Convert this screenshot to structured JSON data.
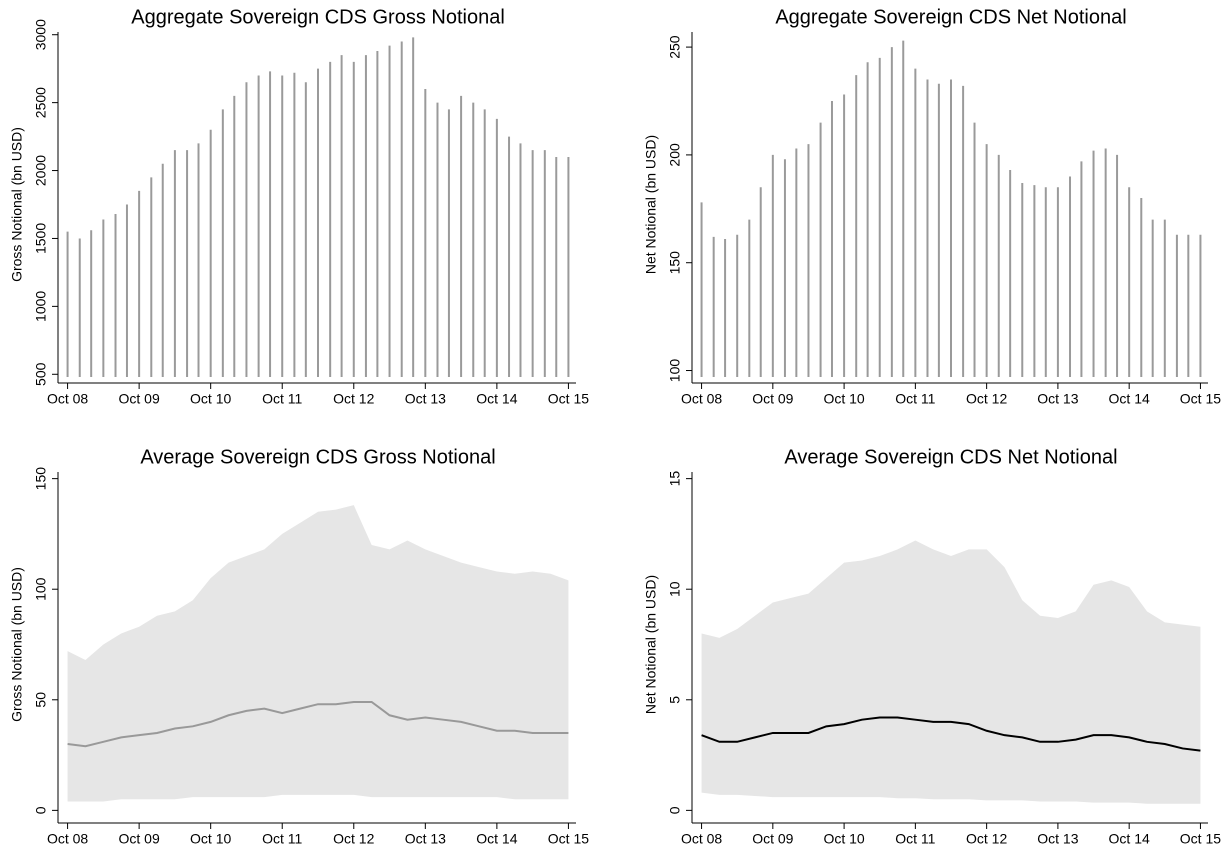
{
  "chart_data": [
    {
      "type": "spike",
      "title": "Aggregate Sovereign CDS Gross Notional",
      "ylabel": "Gross Notional (bn USD)",
      "color": "#9a9a9a",
      "x": [
        2008.75,
        2008.92,
        2009.08,
        2009.25,
        2009.42,
        2009.58,
        2009.75,
        2009.92,
        2010.08,
        2010.25,
        2010.42,
        2010.58,
        2010.75,
        2010.92,
        2011.08,
        2011.25,
        2011.42,
        2011.58,
        2011.75,
        2011.92,
        2012.08,
        2012.25,
        2012.42,
        2012.58,
        2012.75,
        2012.92,
        2013.08,
        2013.25,
        2013.42,
        2013.58,
        2013.75,
        2013.92,
        2014.08,
        2014.25,
        2014.42,
        2014.58,
        2014.75,
        2014.92,
        2015.08,
        2015.25,
        2015.42,
        2015.58,
        2015.75
      ],
      "values": [
        1550,
        1500,
        1560,
        1640,
        1680,
        1750,
        1850,
        1950,
        2050,
        2150,
        2150,
        2200,
        2300,
        2450,
        2550,
        2650,
        2700,
        2730,
        2700,
        2720,
        2650,
        2750,
        2800,
        2850,
        2800,
        2850,
        2880,
        2920,
        2950,
        2980,
        2600,
        2500,
        2450,
        2550,
        2500,
        2450,
        2380,
        2250,
        2200,
        2150,
        2150,
        2100,
        2100
      ],
      "xlim": [
        2008.7,
        2015.8
      ],
      "ylim": [
        480,
        3020
      ],
      "yticks": [
        500,
        1000,
        1500,
        2000,
        2500,
        3000
      ],
      "xticks": [
        {
          "value": 2008.75,
          "label": "Oct 08"
        },
        {
          "value": 2009.75,
          "label": "Oct 09"
        },
        {
          "value": 2010.75,
          "label": "Oct 10"
        },
        {
          "value": 2011.75,
          "label": "Oct 11"
        },
        {
          "value": 2012.75,
          "label": "Oct 12"
        },
        {
          "value": 2013.75,
          "label": "Oct 13"
        },
        {
          "value": 2014.75,
          "label": "Oct 14"
        },
        {
          "value": 2015.75,
          "label": "Oct 15"
        }
      ]
    },
    {
      "type": "spike",
      "title": "Aggregate Sovereign CDS Net Notional",
      "ylabel": "Net Notional (bn USD)",
      "color": "#9a9a9a",
      "x": [
        2008.75,
        2008.92,
        2009.08,
        2009.25,
        2009.42,
        2009.58,
        2009.75,
        2009.92,
        2010.08,
        2010.25,
        2010.42,
        2010.58,
        2010.75,
        2010.92,
        2011.08,
        2011.25,
        2011.42,
        2011.58,
        2011.75,
        2011.92,
        2012.08,
        2012.25,
        2012.42,
        2012.58,
        2012.75,
        2012.92,
        2013.08,
        2013.25,
        2013.42,
        2013.58,
        2013.75,
        2013.92,
        2014.08,
        2014.25,
        2014.42,
        2014.58,
        2014.75,
        2014.92,
        2015.08,
        2015.25,
        2015.42,
        2015.58,
        2015.75
      ],
      "values": [
        178,
        162,
        161,
        163,
        170,
        185,
        200,
        198,
        203,
        205,
        215,
        225,
        228,
        237,
        243,
        245,
        250,
        253,
        240,
        235,
        233,
        235,
        232,
        215,
        205,
        200,
        193,
        187,
        186,
        185,
        185,
        190,
        197,
        202,
        203,
        200,
        185,
        180,
        170,
        170,
        163,
        163,
        163
      ],
      "xlim": [
        2008.7,
        2015.8
      ],
      "ylim": [
        97,
        257
      ],
      "yticks": [
        100,
        150,
        200,
        250
      ],
      "xticks": [
        {
          "value": 2008.75,
          "label": "Oct 08"
        },
        {
          "value": 2009.75,
          "label": "Oct 09"
        },
        {
          "value": 2010.75,
          "label": "Oct 10"
        },
        {
          "value": 2011.75,
          "label": "Oct 11"
        },
        {
          "value": 2012.75,
          "label": "Oct 12"
        },
        {
          "value": 2013.75,
          "label": "Oct 13"
        },
        {
          "value": 2014.75,
          "label": "Oct 14"
        },
        {
          "value": 2015.75,
          "label": "Oct 15"
        }
      ]
    },
    {
      "type": "range-line",
      "title": "Average Sovereign CDS Gross Notional",
      "ylabel": "Gross Notional (bn USD)",
      "color": "#999999",
      "band": {
        "color": "#e6e6e6",
        "upper": [
          72,
          68,
          75,
          80,
          83,
          88,
          90,
          95,
          105,
          112,
          115,
          118,
          125,
          130,
          135,
          136,
          138,
          120,
          118,
          122,
          118,
          115,
          112,
          110,
          108,
          107,
          108,
          107,
          104
        ],
        "lower": [
          4,
          4,
          4,
          5,
          5,
          5,
          5,
          6,
          6,
          6,
          6,
          6,
          7,
          7,
          7,
          7,
          7,
          6,
          6,
          6,
          6,
          6,
          6,
          6,
          6,
          5,
          5,
          5,
          5
        ]
      },
      "x": [
        2008.75,
        2009,
        2009.25,
        2009.5,
        2009.75,
        2010,
        2010.25,
        2010.5,
        2010.75,
        2011,
        2011.25,
        2011.5,
        2011.75,
        2012,
        2012.25,
        2012.5,
        2012.75,
        2013,
        2013.25,
        2013.5,
        2013.75,
        2014,
        2014.25,
        2014.5,
        2014.75,
        2015,
        2015.25,
        2015.5,
        2015.75
      ],
      "values": [
        30,
        29,
        31,
        33,
        34,
        35,
        37,
        38,
        40,
        43,
        45,
        46,
        44,
        46,
        48,
        48,
        49,
        49,
        43,
        41,
        42,
        41,
        40,
        38,
        36,
        36,
        35,
        35,
        35
      ],
      "xlim": [
        2008.7,
        2015.8
      ],
      "ylim": [
        -3,
        153
      ],
      "yticks": [
        0,
        50,
        100,
        150
      ],
      "xticks": [
        {
          "value": 2008.75,
          "label": "Oct 08"
        },
        {
          "value": 2009.75,
          "label": "Oct 09"
        },
        {
          "value": 2010.75,
          "label": "Oct 10"
        },
        {
          "value": 2011.75,
          "label": "Oct 11"
        },
        {
          "value": 2012.75,
          "label": "Oct 12"
        },
        {
          "value": 2013.75,
          "label": "Oct 13"
        },
        {
          "value": 2014.75,
          "label": "Oct 14"
        },
        {
          "value": 2015.75,
          "label": "Oct 15"
        }
      ]
    },
    {
      "type": "range-line",
      "title": "Average Sovereign CDS Net Notional",
      "ylabel": "Net Notional (bn USD)",
      "color": "#000000",
      "band": {
        "color": "#e6e6e6",
        "upper": [
          8,
          7.8,
          8.2,
          8.8,
          9.4,
          9.6,
          9.8,
          10.5,
          11.2,
          11.3,
          11.5,
          11.8,
          12.2,
          11.8,
          11.5,
          11.8,
          11.8,
          11,
          9.5,
          8.8,
          8.7,
          9,
          10.2,
          10.4,
          10.1,
          9,
          8.5,
          8.4,
          8.3
        ],
        "lower": [
          0.8,
          0.7,
          0.7,
          0.65,
          0.6,
          0.6,
          0.6,
          0.6,
          0.6,
          0.6,
          0.6,
          0.55,
          0.55,
          0.5,
          0.5,
          0.5,
          0.45,
          0.45,
          0.45,
          0.4,
          0.4,
          0.4,
          0.35,
          0.35,
          0.35,
          0.3,
          0.3,
          0.3,
          0.3
        ]
      },
      "x": [
        2008.75,
        2009,
        2009.25,
        2009.5,
        2009.75,
        2010,
        2010.25,
        2010.5,
        2010.75,
        2011,
        2011.25,
        2011.5,
        2011.75,
        2012,
        2012.25,
        2012.5,
        2012.75,
        2013,
        2013.25,
        2013.5,
        2013.75,
        2014,
        2014.25,
        2014.5,
        2014.75,
        2015,
        2015.25,
        2015.5,
        2015.75
      ],
      "values": [
        3.4,
        3.1,
        3.1,
        3.3,
        3.5,
        3.5,
        3.5,
        3.8,
        3.9,
        4.1,
        4.2,
        4.2,
        4.1,
        4,
        4,
        3.9,
        3.6,
        3.4,
        3.3,
        3.1,
        3.1,
        3.2,
        3.4,
        3.4,
        3.3,
        3.1,
        3,
        2.8,
        2.7
      ],
      "xlim": [
        2008.7,
        2015.8
      ],
      "ylim": [
        -0.3,
        15.3
      ],
      "yticks": [
        0,
        5,
        10,
        15
      ],
      "xticks": [
        {
          "value": 2008.75,
          "label": "Oct 08"
        },
        {
          "value": 2009.75,
          "label": "Oct 09"
        },
        {
          "value": 2010.75,
          "label": "Oct 10"
        },
        {
          "value": 2011.75,
          "label": "Oct 11"
        },
        {
          "value": 2012.75,
          "label": "Oct 12"
        },
        {
          "value": 2013.75,
          "label": "Oct 13"
        },
        {
          "value": 2014.75,
          "label": "Oct 14"
        },
        {
          "value": 2015.75,
          "label": "Oct 15"
        }
      ]
    }
  ]
}
